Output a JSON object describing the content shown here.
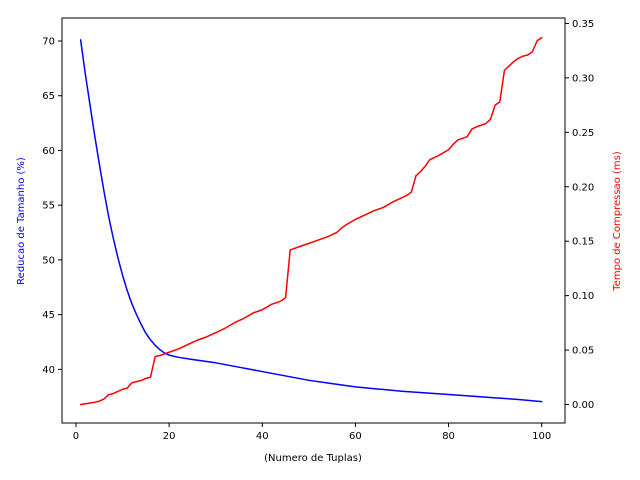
{
  "chart_data": {
    "type": "line",
    "title": "",
    "xlabel": "(Numero de Tuplas)",
    "ylabel_left": "Reducao de Tamanho (%)",
    "ylabel_right": "Tempo de Compressao (ms)",
    "xlim": [
      -3,
      105
    ],
    "ylim_left": [
      35.1,
      72.1
    ],
    "ylim_right": [
      -0.017,
      0.355
    ],
    "x_ticks": [
      0,
      20,
      40,
      60,
      80,
      100
    ],
    "y_left_ticks": [
      40,
      45,
      50,
      55,
      60,
      65,
      70
    ],
    "y_right_ticks": [
      0.0,
      0.05,
      0.1,
      0.15,
      0.2,
      0.25,
      0.3,
      0.35
    ],
    "grid": false,
    "series": [
      {
        "name": "Reducao de Tamanho (%)",
        "axis": "left",
        "color": "#0000ff",
        "x": [
          1,
          2,
          3,
          4,
          5,
          6,
          7,
          8,
          9,
          10,
          11,
          12,
          13,
          14,
          15,
          16,
          17,
          18,
          19,
          20,
          22,
          25,
          30,
          35,
          40,
          45,
          50,
          55,
          60,
          65,
          70,
          75,
          80,
          85,
          90,
          95,
          100
        ],
        "values": [
          70.1,
          67.0,
          64.2,
          61.4,
          58.8,
          56.3,
          54.0,
          52.0,
          50.2,
          48.6,
          47.2,
          46.0,
          45.0,
          44.1,
          43.3,
          42.7,
          42.2,
          41.8,
          41.5,
          41.3,
          41.1,
          40.9,
          40.6,
          40.2,
          39.8,
          39.4,
          39.0,
          38.7,
          38.4,
          38.2,
          38.0,
          37.85,
          37.7,
          37.55,
          37.4,
          37.25,
          37.05
        ]
      },
      {
        "name": "Tempo de Compressao (ms)",
        "axis": "right",
        "color": "#ff0000",
        "x": [
          1,
          4,
          5,
          6,
          7,
          8,
          9,
          10,
          11,
          12,
          13,
          14,
          15,
          16,
          17,
          18,
          20,
          22,
          24,
          26,
          28,
          30,
          32,
          34,
          36,
          38,
          40,
          42,
          44,
          45,
          46,
          48,
          50,
          52,
          54,
          56,
          57,
          58,
          60,
          62,
          64,
          66,
          68,
          69,
          70,
          71,
          72,
          73,
          74,
          75,
          76,
          78,
          80,
          81,
          82,
          84,
          85,
          86,
          88,
          89,
          90,
          91,
          92,
          93,
          94,
          95,
          96,
          97,
          98,
          99,
          100
        ],
        "values": [
          0.0,
          0.002,
          0.003,
          0.005,
          0.009,
          0.01,
          0.012,
          0.014,
          0.015,
          0.02,
          0.021,
          0.022,
          0.024,
          0.025,
          0.044,
          0.045,
          0.048,
          0.051,
          0.055,
          0.059,
          0.062,
          0.066,
          0.07,
          0.075,
          0.079,
          0.084,
          0.087,
          0.092,
          0.095,
          0.098,
          0.142,
          0.145,
          0.148,
          0.151,
          0.154,
          0.158,
          0.162,
          0.165,
          0.17,
          0.174,
          0.178,
          0.181,
          0.186,
          0.188,
          0.19,
          0.192,
          0.195,
          0.21,
          0.214,
          0.219,
          0.225,
          0.229,
          0.234,
          0.239,
          0.243,
          0.246,
          0.253,
          0.255,
          0.258,
          0.262,
          0.275,
          0.278,
          0.307,
          0.311,
          0.315,
          0.318,
          0.32,
          0.321,
          0.324,
          0.334,
          0.337
        ]
      }
    ]
  }
}
